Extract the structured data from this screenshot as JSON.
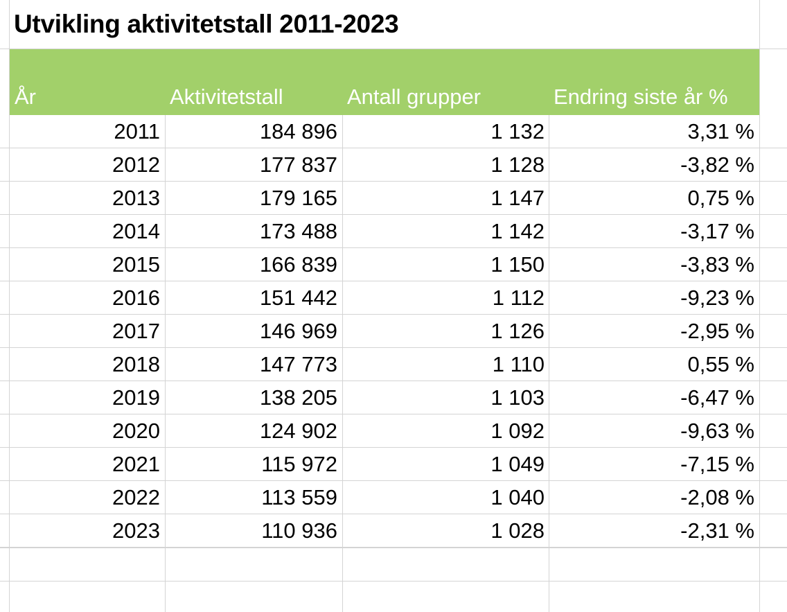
{
  "title": "Utvikling aktivitetstall 2011-2023",
  "header": {
    "year": "År",
    "activity": "Aktivitetstall",
    "groups": "Antall grupper",
    "change": "Endring siste år %"
  },
  "colors": {
    "header_band": "#a2d06a",
    "header_text": "#ffffff",
    "gridline": "#d4d4d4"
  },
  "rows": [
    {
      "year": "2011",
      "activity": "184 896",
      "groups": "1 132",
      "change": "3,31 %"
    },
    {
      "year": "2012",
      "activity": "177 837",
      "groups": "1 128",
      "change": "-3,82 %"
    },
    {
      "year": "2013",
      "activity": "179 165",
      "groups": "1 147",
      "change": "0,75 %"
    },
    {
      "year": "2014",
      "activity": "173 488",
      "groups": "1 142",
      "change": "-3,17 %"
    },
    {
      "year": "2015",
      "activity": "166 839",
      "groups": "1 150",
      "change": "-3,83 %"
    },
    {
      "year": "2016",
      "activity": "151 442",
      "groups": "1 112",
      "change": "-9,23 %"
    },
    {
      "year": "2017",
      "activity": "146 969",
      "groups": "1 126",
      "change": "-2,95 %"
    },
    {
      "year": "2018",
      "activity": "147 773",
      "groups": "1 110",
      "change": "0,55 %"
    },
    {
      "year": "2019",
      "activity": "138 205",
      "groups": "1 103",
      "change": "-6,47 %"
    },
    {
      "year": "2020",
      "activity": "124 902",
      "groups": "1 092",
      "change": "-9,63 %"
    },
    {
      "year": "2021",
      "activity": "115 972",
      "groups": "1 049",
      "change": "-7,15 %"
    },
    {
      "year": "2022",
      "activity": "113 559",
      "groups": "1 040",
      "change": "-2,08 %"
    },
    {
      "year": "2023",
      "activity": "110 936",
      "groups": "1 028",
      "change": "-2,31 %"
    }
  ]
}
